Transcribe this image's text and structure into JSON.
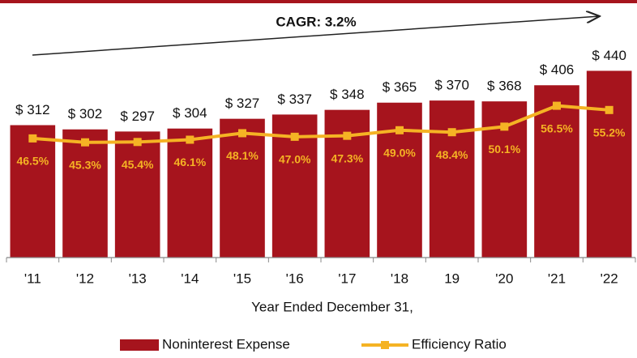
{
  "chart_data": {
    "type": "bar",
    "annotation": "CAGR: 3.2%",
    "xlabel": "Year Ended December 31,",
    "categories": [
      "'11",
      "'12",
      "'13",
      "'14",
      "'15",
      "'16",
      "'17",
      "'18",
      "19",
      "'20",
      "'21",
      "'22"
    ],
    "ylim": [
      0,
      500
    ],
    "y2lim": [
      10,
      75
    ],
    "series": [
      {
        "name": "Noninterest Expense",
        "type": "bar",
        "color": "#a6141d",
        "values": [
          312,
          302,
          297,
          304,
          327,
          337,
          348,
          365,
          370,
          368,
          406,
          440
        ],
        "value_labels": [
          "$ 312",
          "$ 302",
          "$ 297",
          "$ 304",
          "$ 327",
          "$ 337",
          "$ 348",
          "$ 365",
          "$ 370",
          "$ 368",
          "$ 406",
          "$ 440"
        ]
      },
      {
        "name": "Efficiency Ratio",
        "type": "line",
        "axis": "y2",
        "color": "#f5b324",
        "values": [
          46.5,
          45.3,
          45.4,
          46.1,
          48.1,
          47.0,
          47.3,
          49.0,
          48.4,
          50.1,
          56.5,
          55.2
        ],
        "value_labels": [
          "46.5%",
          "45.3%",
          "45.4%",
          "46.1%",
          "48.1%",
          "47.0%",
          "47.3%",
          "49.0%",
          "48.4%",
          "50.1%",
          "56.5%",
          "55.2%"
        ]
      }
    ],
    "legend": "bottom"
  }
}
